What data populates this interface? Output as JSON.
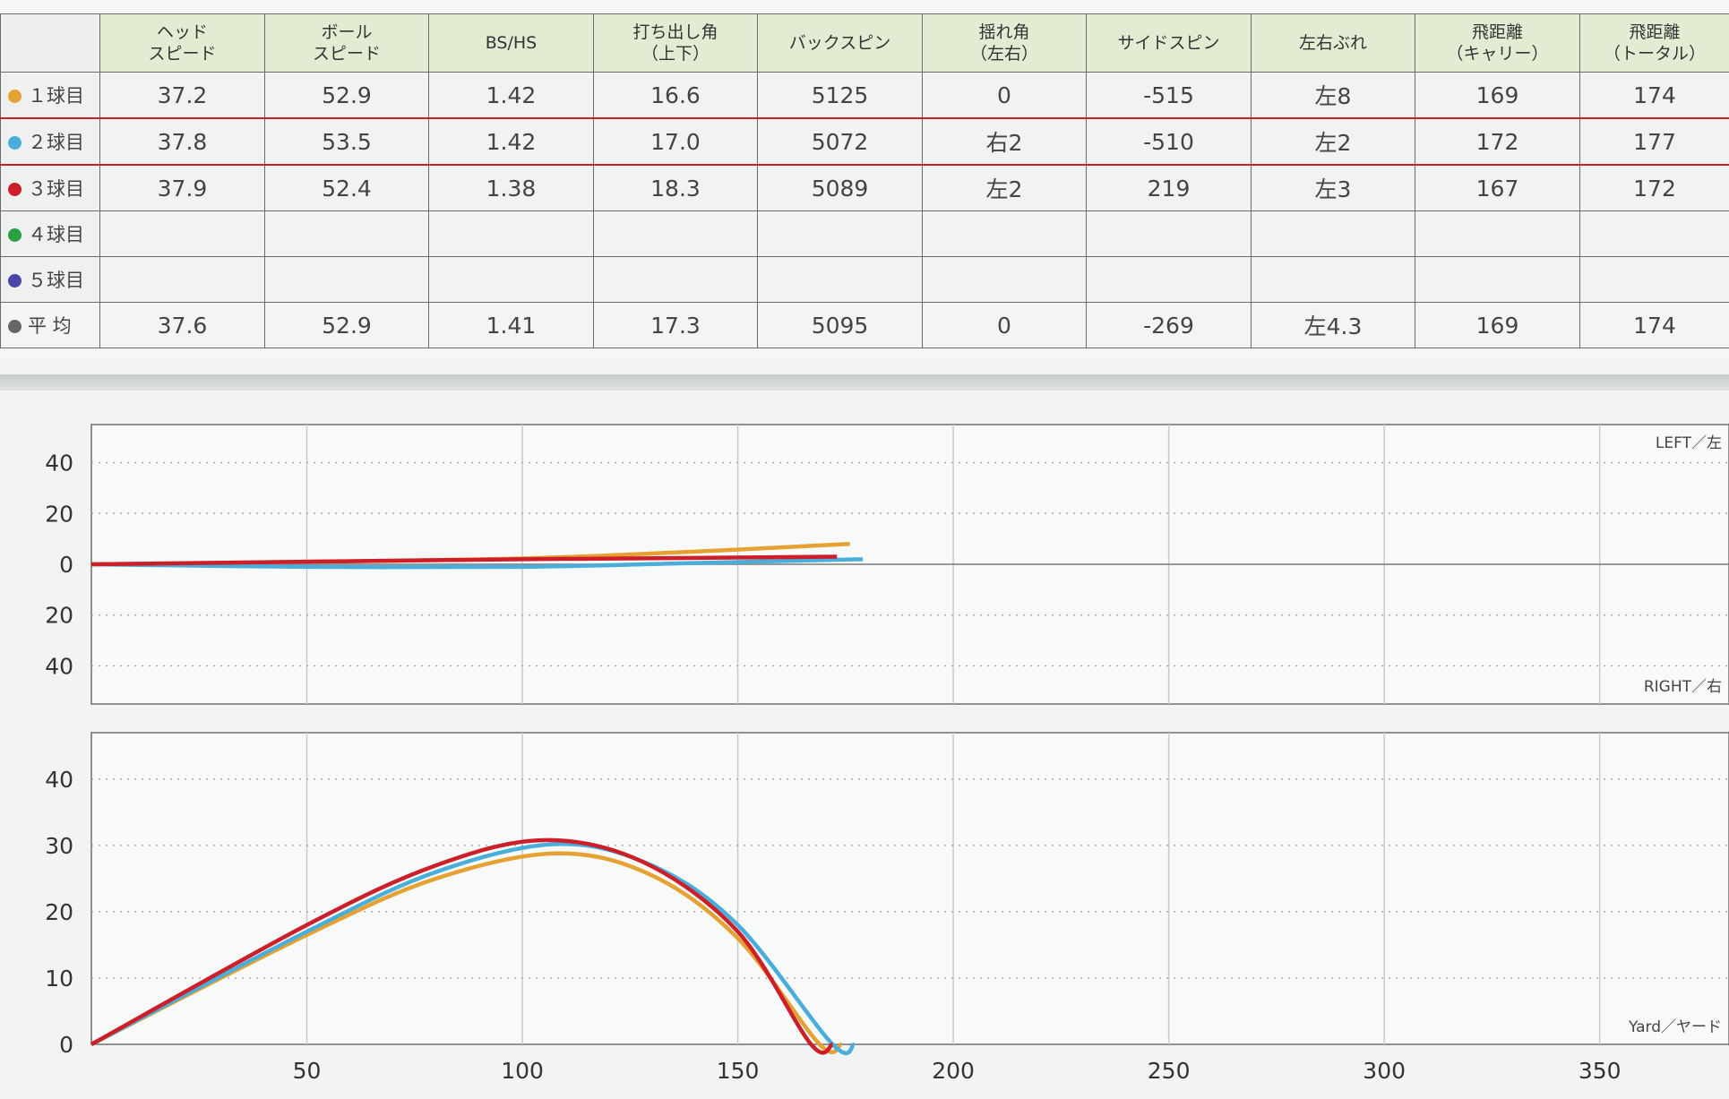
{
  "table": {
    "headers": [
      [
        "ヘッド",
        "スピード"
      ],
      [
        "ボール",
        "スピード"
      ],
      [
        "BS/HS"
      ],
      [
        "打ち出し角",
        "（上下）"
      ],
      [
        "バックスピン"
      ],
      [
        "揺れ角",
        "（左右）"
      ],
      [
        "サイドスピン"
      ],
      [
        "左右ぶれ"
      ],
      [
        "飛距離",
        "（キャリー）"
      ],
      [
        "飛距離",
        "（トータル）"
      ]
    ],
    "rows": [
      {
        "label": "１球目",
        "color": "#e6a133",
        "cells": [
          "37.2",
          "52.9",
          "1.42",
          "16.6",
          "5125",
          "0",
          "-515",
          "左8",
          "169",
          "174"
        ]
      },
      {
        "label": "２球目",
        "color": "#4aaedb",
        "cells": [
          "37.8",
          "53.5",
          "1.42",
          "17.0",
          "5072",
          "右2",
          "-510",
          "左2",
          "172",
          "177"
        ]
      },
      {
        "label": "３球目",
        "color": "#cc1f2a",
        "cells": [
          "37.9",
          "52.4",
          "1.38",
          "18.3",
          "5089",
          "左2",
          "219",
          "左3",
          "167",
          "172"
        ]
      },
      {
        "label": "４球目",
        "color": "#2aa043",
        "cells": [
          "",
          "",
          "",
          "",
          "",
          "",
          "",
          "",
          "",
          ""
        ]
      },
      {
        "label": "５球目",
        "color": "#4a45a6",
        "cells": [
          "",
          "",
          "",
          "",
          "",
          "",
          "",
          "",
          "",
          ""
        ]
      },
      {
        "label": "平 均",
        "color": "#666666",
        "cells": [
          "37.6",
          "52.9",
          "1.41",
          "17.3",
          "5095",
          "0",
          "-269",
          "左4.3",
          "169",
          "174"
        ]
      }
    ]
  },
  "chart_data": [
    {
      "type": "line",
      "xlim": [
        0,
        380
      ],
      "ylim": [
        -55,
        55
      ],
      "ytick_values": [
        40,
        20,
        0,
        -20,
        -40
      ],
      "ytick_labels": [
        "40",
        "20",
        "0",
        "20",
        "40"
      ],
      "xgrid": [
        50,
        100,
        150,
        200,
        250,
        300,
        350
      ],
      "label_top_right": "LEFT／左",
      "label_bottom_right": "RIGHT／右",
      "series": [
        {
          "color": "#e6a133",
          "points": [
            [
              0,
              0
            ],
            [
              50,
              1
            ],
            [
              100,
              2.3
            ],
            [
              140,
              5
            ],
            [
              176,
              8
            ]
          ]
        },
        {
          "color": "#4aaedb",
          "points": [
            [
              0,
              0
            ],
            [
              50,
              -1
            ],
            [
              100,
              -1
            ],
            [
              140,
              0.5
            ],
            [
              179,
              2
            ]
          ]
        },
        {
          "color": "#cc1f2a",
          "points": [
            [
              0,
              0
            ],
            [
              50,
              1
            ],
            [
              100,
              2
            ],
            [
              140,
              2.5
            ],
            [
              173,
              3
            ]
          ]
        }
      ]
    },
    {
      "type": "line",
      "xlim": [
        0,
        380
      ],
      "ylim": [
        0,
        47
      ],
      "ytick_values": [
        40,
        30,
        20,
        10,
        0
      ],
      "ytick_labels": [
        "40",
        "30",
        "20",
        "10",
        "0"
      ],
      "xtick_values": [
        50,
        100,
        150,
        200,
        250,
        300,
        350
      ],
      "xtick_labels": [
        "50",
        "100",
        "150",
        "200",
        "250",
        "300",
        "350"
      ],
      "label_bottom_right": "Yard／ヤード",
      "series": [
        {
          "color": "#e6a133",
          "points": [
            [
              0,
              0
            ],
            [
              50,
              16.5
            ],
            [
              80,
              25
            ],
            [
              108,
              28.8
            ],
            [
              130,
              25.5
            ],
            [
              150,
              16
            ],
            [
              169,
              0
            ],
            [
              174,
              0
            ]
          ]
        },
        {
          "color": "#4aaedb",
          "points": [
            [
              0,
              0
            ],
            [
              50,
              17
            ],
            [
              80,
              26
            ],
            [
              108,
              30.2
            ],
            [
              130,
              27
            ],
            [
              150,
              18
            ],
            [
              172,
              0
            ],
            [
              177,
              0
            ]
          ]
        },
        {
          "color": "#cc1f2a",
          "points": [
            [
              0,
              0
            ],
            [
              50,
              18
            ],
            [
              80,
              27
            ],
            [
              105,
              30.8
            ],
            [
              128,
              27.5
            ],
            [
              150,
              17
            ],
            [
              167,
              0
            ],
            [
              172,
              0
            ]
          ]
        }
      ]
    }
  ]
}
